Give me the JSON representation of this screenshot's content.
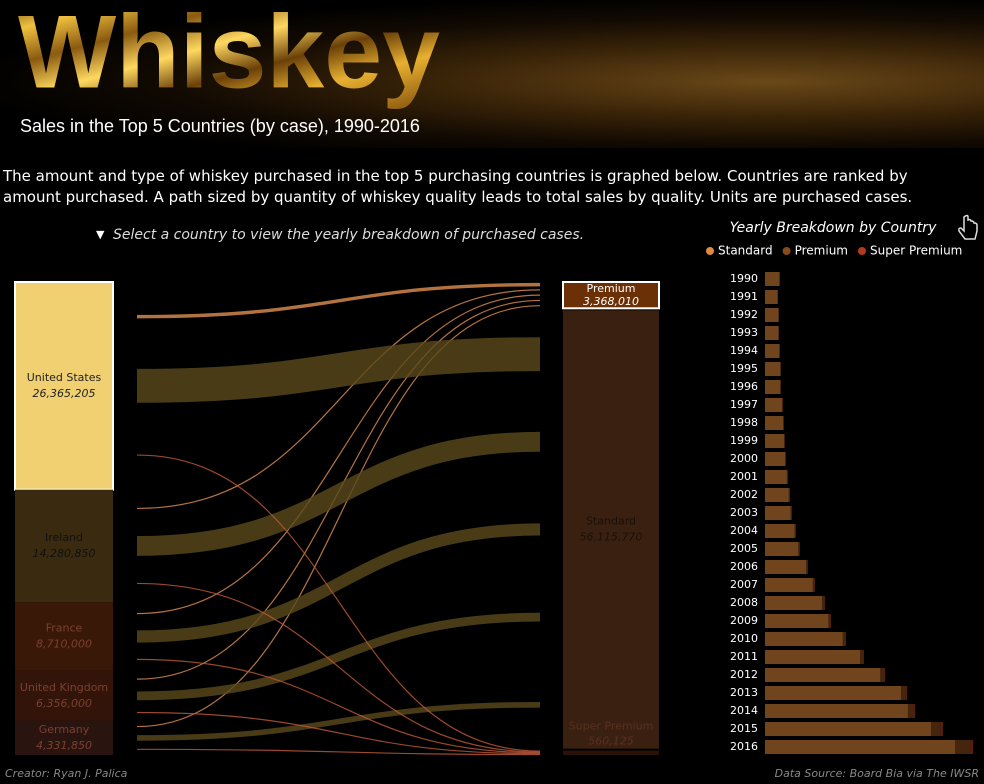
{
  "header": {
    "title": "Whiskey",
    "subtitle": "Sales in the Top 5 Countries (by case), 1990-2016"
  },
  "description": "The amount and type of whiskey purchased in the top 5 purchasing countries is graphed below. Countries are ranked by amount purchased. A path sized by quantity of whiskey quality leads to total sales by quality. Units are purchased cases.",
  "instruction": "Select a country to view the yearly breakdown of purchased cases.",
  "chart_data": [
    {
      "type": "sankey",
      "categories": [
        "United States",
        "Ireland",
        "France",
        "United Kingdom",
        "Germany"
      ],
      "values": [
        26365205,
        14280850,
        8710000,
        6356000,
        4331850
      ],
      "value_labels": [
        "26,365,205",
        "14,280,850",
        "8,710,000",
        "6,356,000",
        "4,331,850"
      ],
      "colors": [
        "#f0d070",
        "#3a2a10",
        "#3a1808",
        "#321408",
        "#2a1410"
      ],
      "targets": {
        "categories": [
          "Premium",
          "Standard",
          "Super Premium"
        ],
        "values": [
          3368010,
          56115770,
          560125
        ],
        "value_labels": [
          "3,368,010",
          "56,115,770",
          "560,125"
        ],
        "colors": [
          "#6b3005",
          "#3a2010",
          "#2a1208"
        ],
        "link_colors": [
          "#e09050",
          "#5a4a1c",
          "#c05a3a"
        ],
        "flows": [
          [
            2400000,
            300000,
            150000,
            200000,
            318010
          ],
          [
            23700000,
            13900000,
            8500000,
            6100000,
            3915770
          ],
          [
            265205,
            80850,
            60000,
            56000,
            98070
          ]
        ]
      }
    },
    {
      "type": "bar",
      "title": "Yearly Breakdown by Country",
      "orientation": "horizontal",
      "stacked": true,
      "categories": [
        "1990",
        "1991",
        "1992",
        "1993",
        "1994",
        "1995",
        "1996",
        "1997",
        "1998",
        "1999",
        "2000",
        "2001",
        "2002",
        "2003",
        "2004",
        "2005",
        "2006",
        "2007",
        "2008",
        "2009",
        "2010",
        "2011",
        "2012",
        "2013",
        "2014",
        "2015",
        "2016"
      ],
      "series": [
        {
          "name": "Standard",
          "color": "#e08a3c",
          "values": [
            250000,
            217000,
            233000,
            233000,
            249000,
            266000,
            265000,
            298000,
            315000,
            331000,
            347000,
            380000,
            413000,
            445000,
            512000,
            578000,
            714000,
            830000,
            990000,
            1100000,
            1350000,
            1650000,
            2000000,
            2360000,
            2480000,
            2880000,
            3300000
          ]
        },
        {
          "name": "Premium",
          "color": "#8a4a1a",
          "values": [
            8000,
            7000,
            8000,
            8000,
            9000,
            10000,
            11000,
            12000,
            13000,
            14000,
            15000,
            16000,
            18000,
            20000,
            22000,
            25000,
            28000,
            33000,
            45000,
            38000,
            45000,
            55000,
            65000,
            80000,
            95000,
            170000,
            260000
          ]
        },
        {
          "name": "Super Premium",
          "color": "#b23a1a",
          "values": [
            2000,
            2000,
            2000,
            2000,
            2000,
            2000,
            2000,
            2000,
            2000,
            2000,
            2000,
            3000,
            3000,
            3000,
            4000,
            4000,
            4000,
            5000,
            6000,
            7000,
            10000,
            13000,
            17000,
            24000,
            28000,
            38000,
            49000
          ]
        }
      ]
    }
  ],
  "footer": {
    "creator": "Creator: Ryan J. Palica",
    "source": "Data Source: Board Bia via The IWSR"
  }
}
